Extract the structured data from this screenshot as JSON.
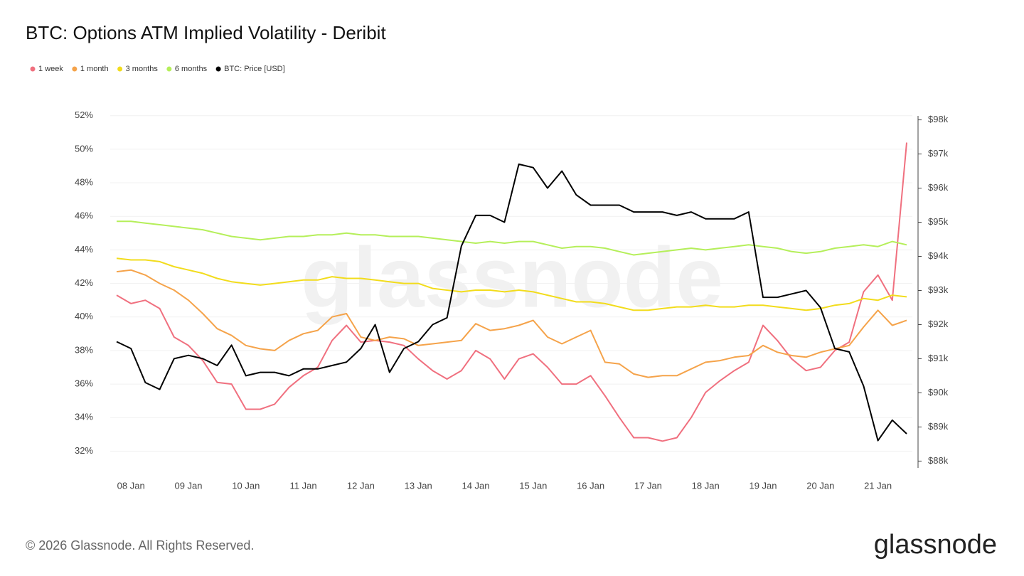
{
  "chart_data": {
    "type": "line",
    "title": "BTC: Options ATM Implied Volatility - Deribit",
    "footer": "© 2026 Glassnode. All Rights Reserved.",
    "brand": "glassnode",
    "categories": [
      null,
      "08 Jan",
      null,
      null,
      null,
      "09 Jan",
      null,
      null,
      null,
      "10 Jan",
      null,
      null,
      null,
      "11 Jan",
      null,
      null,
      null,
      "12 Jan",
      null,
      null,
      null,
      "13 Jan",
      null,
      null,
      null,
      "14 Jan",
      null,
      null,
      null,
      "15 Jan",
      null,
      null,
      null,
      "16 Jan",
      null,
      null,
      null,
      "17 Jan",
      null,
      null,
      null,
      "18 Jan",
      null,
      null,
      null,
      "19 Jan",
      null,
      null,
      null,
      "20 Jan",
      null,
      null,
      null,
      "21 Jan",
      null,
      null
    ],
    "ylim": [
      31,
      52.2
    ],
    "yticks": [
      {
        "value": 32,
        "label": "32%"
      },
      {
        "value": 34,
        "label": "34%"
      },
      {
        "value": 36,
        "label": "36%"
      },
      {
        "value": 38,
        "label": "38%"
      },
      {
        "value": 40,
        "label": "40%"
      },
      {
        "value": 42,
        "label": "42%"
      },
      {
        "value": 44,
        "label": "44%"
      },
      {
        "value": 46,
        "label": "46%"
      },
      {
        "value": 48,
        "label": "48%"
      },
      {
        "value": 50,
        "label": "50%"
      },
      {
        "value": 52,
        "label": "52%"
      }
    ],
    "y2lim": [
      87800,
      98220
    ],
    "y2ticks": [
      {
        "value": 88000,
        "label": "$88k"
      },
      {
        "value": 89000,
        "label": "$89k"
      },
      {
        "value": 90000,
        "label": "$90k"
      },
      {
        "value": 91000,
        "label": "$91k"
      },
      {
        "value": 92000,
        "label": "$92k"
      },
      {
        "value": 93000,
        "label": "$93k"
      },
      {
        "value": 94000,
        "label": "$94k"
      },
      {
        "value": 95000,
        "label": "$95k"
      },
      {
        "value": 96000,
        "label": "$96k"
      },
      {
        "value": 97000,
        "label": "$97k"
      },
      {
        "value": 98000,
        "label": "$98k"
      }
    ],
    "grid": true,
    "series": [
      {
        "name": "1 week",
        "color": "#f0707f",
        "values": [
          41.3,
          40.8,
          41.0,
          40.5,
          38.8,
          38.3,
          37.4,
          36.1,
          36.0,
          34.5,
          34.5,
          34.8,
          35.8,
          36.5,
          37.0,
          38.6,
          39.5,
          38.5,
          38.6,
          38.5,
          38.3,
          37.5,
          36.8,
          36.3,
          36.8,
          38.0,
          37.5,
          36.3,
          37.5,
          37.8,
          37.0,
          36.0,
          36.0,
          36.5,
          35.3,
          34.0,
          32.8,
          32.8,
          32.6,
          32.8,
          34.0,
          35.5,
          36.2,
          36.8,
          37.3,
          39.5,
          38.6,
          37.5,
          36.8,
          37.0,
          38.0,
          38.5,
          41.5,
          42.5,
          41.0,
          50.4
        ]
      },
      {
        "name": "1 month",
        "color": "#f5a34a",
        "values": [
          42.7,
          42.8,
          42.5,
          42.0,
          41.6,
          41.0,
          40.2,
          39.3,
          38.9,
          38.3,
          38.1,
          38.0,
          38.6,
          39.0,
          39.2,
          40.0,
          40.2,
          38.8,
          38.6,
          38.8,
          38.7,
          38.3,
          38.4,
          38.5,
          38.6,
          39.6,
          39.2,
          39.3,
          39.5,
          39.8,
          38.8,
          38.4,
          38.8,
          39.2,
          37.3,
          37.2,
          36.6,
          36.4,
          36.5,
          36.5,
          36.9,
          37.3,
          37.4,
          37.6,
          37.7,
          38.3,
          37.9,
          37.7,
          37.6,
          37.9,
          38.1,
          38.3,
          39.4,
          40.4,
          39.5,
          39.8
        ]
      },
      {
        "name": "3 months",
        "color": "#f2dc1c",
        "values": [
          43.5,
          43.4,
          43.4,
          43.3,
          43.0,
          42.8,
          42.6,
          42.3,
          42.1,
          42.0,
          41.9,
          42.0,
          42.1,
          42.2,
          42.2,
          42.4,
          42.3,
          42.3,
          42.2,
          42.1,
          42.0,
          42.0,
          41.7,
          41.6,
          41.5,
          41.6,
          41.6,
          41.5,
          41.6,
          41.5,
          41.3,
          41.1,
          40.9,
          40.9,
          40.8,
          40.6,
          40.4,
          40.4,
          40.5,
          40.6,
          40.6,
          40.7,
          40.6,
          40.6,
          40.7,
          40.7,
          40.6,
          40.5,
          40.4,
          40.5,
          40.7,
          40.8,
          41.1,
          41.0,
          41.3,
          41.2
        ]
      },
      {
        "name": "6 months",
        "color": "#b5ef5a",
        "values": [
          45.7,
          45.7,
          45.6,
          45.5,
          45.4,
          45.3,
          45.2,
          45.0,
          44.8,
          44.7,
          44.6,
          44.7,
          44.8,
          44.8,
          44.9,
          44.9,
          45.0,
          44.9,
          44.9,
          44.8,
          44.8,
          44.8,
          44.7,
          44.6,
          44.5,
          44.4,
          44.5,
          44.4,
          44.5,
          44.5,
          44.3,
          44.1,
          44.2,
          44.2,
          44.1,
          43.9,
          43.7,
          43.8,
          43.9,
          44.0,
          44.1,
          44.0,
          44.1,
          44.2,
          44.3,
          44.2,
          44.1,
          43.9,
          43.8,
          43.9,
          44.1,
          44.2,
          44.3,
          44.2,
          44.5,
          44.3
        ]
      },
      {
        "name": "BTC: Price [USD]",
        "color": "#000000",
        "axis": "y2",
        "values": [
          91500,
          91300,
          90300,
          90100,
          91000,
          91100,
          91000,
          90800,
          91400,
          90500,
          90600,
          90600,
          90500,
          90700,
          90700,
          90800,
          90900,
          91300,
          92000,
          90600,
          91300,
          91500,
          92000,
          92200,
          94300,
          95200,
          95200,
          95000,
          96700,
          96600,
          96000,
          96500,
          95800,
          95500,
          95500,
          95500,
          95300,
          95300,
          95300,
          95200,
          95300,
          95100,
          95100,
          95100,
          95300,
          92800,
          92800,
          92900,
          93000,
          92500,
          91300,
          91200,
          90200,
          88600,
          89200,
          88800
        ]
      }
    ]
  }
}
